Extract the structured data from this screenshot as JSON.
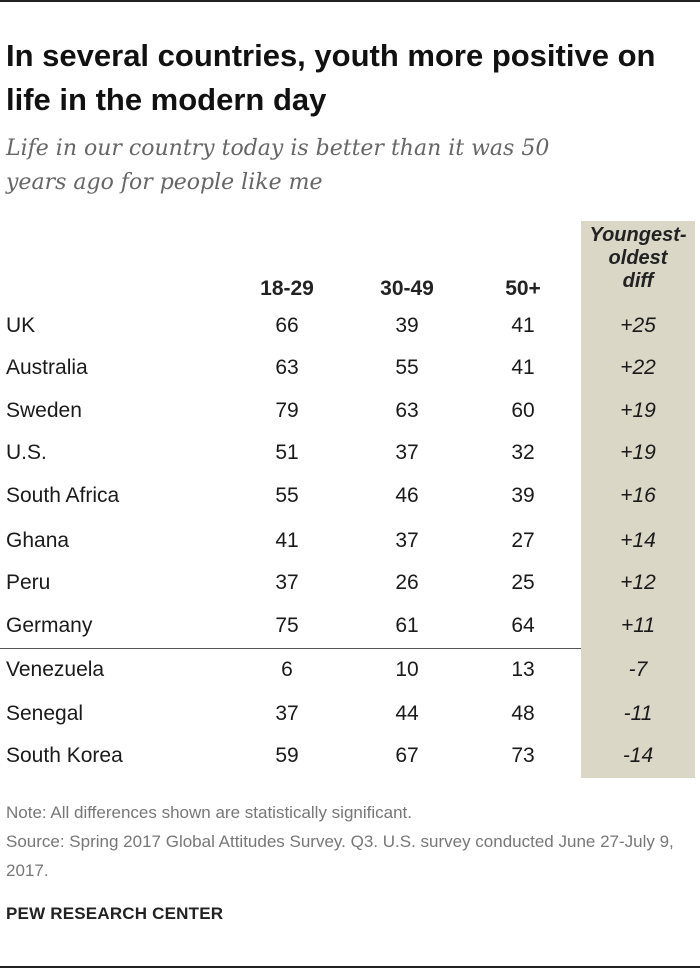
{
  "title": "In several countries, youth more positive on life in the modern day",
  "subtitle": "Life in our country today is better than it was 50 years ago for people like me",
  "chart_data": {
    "type": "table",
    "columns": [
      "18-29",
      "30-49",
      "50+",
      "Youngest-oldest diff"
    ],
    "rows": [
      {
        "country": "UK",
        "a18_29": "66",
        "a30_49": "39",
        "a50plus": "41",
        "diff": "+25"
      },
      {
        "country": "Australia",
        "a18_29": "63",
        "a30_49": "55",
        "a50plus": "41",
        "diff": "+22"
      },
      {
        "country": "Sweden",
        "a18_29": "79",
        "a30_49": "63",
        "a50plus": "60",
        "diff": "+19"
      },
      {
        "country": "U.S.",
        "a18_29": "51",
        "a30_49": "37",
        "a50plus": "32",
        "diff": "+19"
      },
      {
        "country": "South Africa",
        "a18_29": "55",
        "a30_49": "46",
        "a50plus": "39",
        "diff": "+16"
      },
      {
        "country": "Ghana",
        "a18_29": "41",
        "a30_49": "37",
        "a50plus": "27",
        "diff": "+14"
      },
      {
        "country": "Peru",
        "a18_29": "37",
        "a30_49": "26",
        "a50plus": "25",
        "diff": "+12"
      },
      {
        "country": "Germany",
        "a18_29": "75",
        "a30_49": "61",
        "a50plus": "64",
        "diff": "+11"
      },
      {
        "country": "Venezuela",
        "a18_29": "6",
        "a30_49": "10",
        "a50plus": "13",
        "diff": "-7"
      },
      {
        "country": "Senegal",
        "a18_29": "37",
        "a30_49": "44",
        "a50plus": "48",
        "diff": "-11"
      },
      {
        "country": "South Korea",
        "a18_29": "59",
        "a30_49": "67",
        "a50plus": "73",
        "diff": "-14"
      }
    ]
  },
  "headers": {
    "col1": "18-29",
    "col2": "30-49",
    "col3": "50+",
    "diff_line1": "Youngest-",
    "diff_line2": "oldest",
    "diff_line3": "diff"
  },
  "notes": {
    "note": "Note: All differences shown are statistically significant.",
    "source": "Source: Spring 2017 Global Attitudes Survey. Q3. U.S. survey conducted June 27-July 9, 2017."
  },
  "brand": "PEW RESEARCH CENTER",
  "colors": {
    "diff_column_bg": "#dad7c7",
    "title": "#111111",
    "subtitle": "#666666",
    "note": "#777777"
  }
}
